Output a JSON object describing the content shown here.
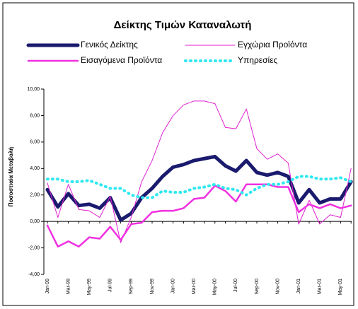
{
  "chart_data": {
    "type": "line",
    "title": "Δείκτης Τιμών Καταναλωτή",
    "ylabel": "Ποσοστιαία Μεταβολή",
    "categories": [
      "Jan-99",
      null,
      "Mar-99",
      null,
      "May-99",
      null,
      "Jul-99",
      null,
      "Sep-99",
      null,
      "Nov-99",
      null,
      "Jan-00",
      null,
      "Mar-00",
      null,
      "May-00",
      null,
      "Jul-00",
      null,
      "Sep-00",
      null,
      "Nov-00",
      null,
      "Jan-01",
      null,
      "Mar-01",
      null,
      "May-01",
      null
    ],
    "series": [
      {
        "name": "Γενικός Δείκτης",
        "color": "#1a1a6e",
        "line_width": 5,
        "dashed": false,
        "values": [
          2.4,
          1.1,
          2.1,
          1.2,
          1.3,
          1.0,
          1.8,
          0.1,
          0.6,
          1.8,
          2.5,
          3.4,
          4.1,
          4.3,
          4.6,
          4.75,
          4.9,
          4.2,
          3.8,
          4.6,
          3.7,
          3.5,
          3.7,
          3.4,
          1.4,
          2.4,
          1.4,
          1.7,
          1.7,
          3.0
        ]
      },
      {
        "name": "Εγχώρια Προϊόντα",
        "color": "#e020d0",
        "line_width": 1,
        "dashed": false,
        "values": [
          2.9,
          0.3,
          2.8,
          0.9,
          0.8,
          0.3,
          1.9,
          -1.6,
          0.3,
          3.0,
          4.6,
          6.7,
          8.0,
          8.8,
          9.1,
          9.1,
          8.9,
          7.1,
          7.0,
          8.5,
          5.5,
          4.7,
          5.1,
          4.4,
          -0.2,
          1.6,
          -0.2,
          0.5,
          0.3,
          4.0
        ]
      },
      {
        "name": "Εισαγόμενα Προϊόντα",
        "color": "#f030e0",
        "line_width": 2.5,
        "dashed": false,
        "values": [
          -0.3,
          -1.9,
          -1.5,
          -1.9,
          -1.2,
          -1.3,
          -0.4,
          -1.4,
          -0.2,
          -0.1,
          0.7,
          0.8,
          0.8,
          1.0,
          1.7,
          1.8,
          2.7,
          2.3,
          1.5,
          2.8,
          2.8,
          2.8,
          2.6,
          2.6,
          0.7,
          1.3,
          1.0,
          1.3,
          1.0,
          1.2
        ]
      },
      {
        "name": "Υπηρεσίες",
        "color": "#30e8f0",
        "line_width": 4,
        "dashed": true,
        "values": [
          3.2,
          3.2,
          3.0,
          3.0,
          3.1,
          2.8,
          2.5,
          2.5,
          2.0,
          1.8,
          1.8,
          2.3,
          2.2,
          2.2,
          2.5,
          2.6,
          2.8,
          2.5,
          2.4,
          2.0,
          2.5,
          2.8,
          2.8,
          3.0,
          3.4,
          3.4,
          3.2,
          3.2,
          3.3,
          3.0
        ]
      }
    ],
    "ylim": [
      -4,
      10
    ],
    "yticks": [
      {
        "value": -4,
        "label": "-4,00"
      },
      {
        "value": -2,
        "label": "-2,00"
      },
      {
        "value": 0,
        "label": "0,00"
      },
      {
        "value": 2,
        "label": "2,00"
      },
      {
        "value": 4,
        "label": "4,00"
      },
      {
        "value": 6,
        "label": "6,00"
      },
      {
        "value": 8,
        "label": "8,00"
      },
      {
        "value": 10,
        "label": "10,00"
      }
    ],
    "grid": false
  }
}
